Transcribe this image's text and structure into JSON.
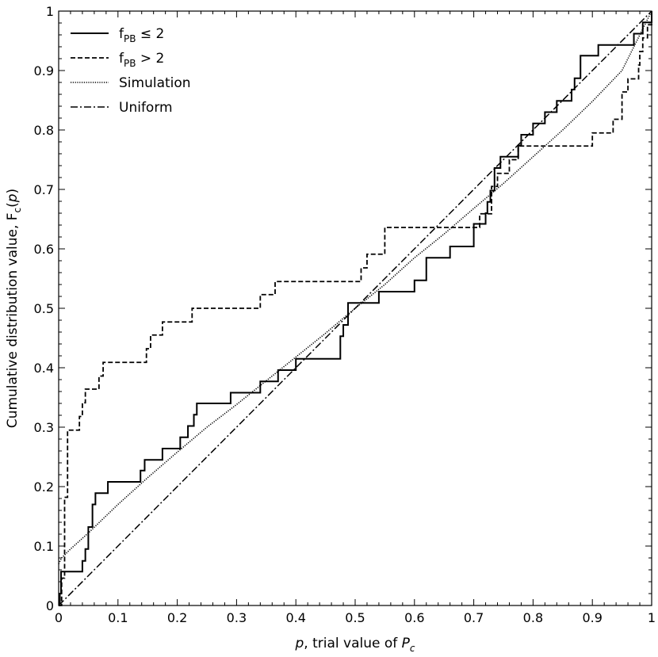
{
  "chart_data": {
    "type": "line",
    "title": "",
    "xlabel": {
      "italic_pre": "p",
      "text": ", trial value of ",
      "italic_main": "P",
      "sub": "c"
    },
    "ylabel": {
      "pre": "Cumulative distribution value, F",
      "sub": "c",
      "post": "(",
      "italic": "p",
      "close": ")"
    },
    "xlim": [
      0,
      1
    ],
    "ylim": [
      0,
      1
    ],
    "x_ticks": [
      "0",
      "0.1",
      "0.2",
      "0.3",
      "0.4",
      "0.5",
      "0.6",
      "0.7",
      "0.8",
      "0.9",
      "1"
    ],
    "y_ticks": [
      "0",
      "0.1",
      "0.2",
      "0.3",
      "0.4",
      "0.5",
      "0.6",
      "0.7",
      "0.8",
      "0.9",
      "1"
    ],
    "legend_position": "top-left",
    "series": [
      {
        "name": {
          "main": "f",
          "sub": "PB",
          "rest": " ≤ 2"
        },
        "style": "solid",
        "step": true,
        "x": [
          0,
          0.002,
          0.004,
          0.04,
          0.045,
          0.05,
          0.057,
          0.062,
          0.083,
          0.138,
          0.145,
          0.175,
          0.205,
          0.218,
          0.228,
          0.233,
          0.29,
          0.34,
          0.37,
          0.4,
          0.475,
          0.48,
          0.488,
          0.54,
          0.6,
          0.62,
          0.66,
          0.7,
          0.7,
          0.72,
          0.723,
          0.728,
          0.735,
          0.745,
          0.775,
          0.78,
          0.8,
          0.82,
          0.84,
          0.85,
          0.865,
          0.87,
          0.88,
          0.91,
          0.94,
          0.97,
          0.985,
          1
        ],
        "y": [
          0,
          0.02,
          0.057,
          0.075,
          0.095,
          0.132,
          0.17,
          0.189,
          0.208,
          0.227,
          0.245,
          0.264,
          0.283,
          0.302,
          0.321,
          0.34,
          0.358,
          0.377,
          0.396,
          0.415,
          0.453,
          0.472,
          0.509,
          0.528,
          0.547,
          0.585,
          0.604,
          0.623,
          0.642,
          0.66,
          0.679,
          0.698,
          0.736,
          0.755,
          0.774,
          0.792,
          0.811,
          0.83,
          0.849,
          0.849,
          0.868,
          0.887,
          0.925,
          0.943,
          0.943,
          0.962,
          0.981,
          1.0
        ]
      },
      {
        "name": {
          "main": "f",
          "sub": "PB",
          "rest": " > 2"
        },
        "style": "dashed",
        "step": true,
        "x": [
          0,
          0.005,
          0.01,
          0.015,
          0.035,
          0.04,
          0.045,
          0.068,
          0.075,
          0.08,
          0.14,
          0.148,
          0.155,
          0.175,
          0.2,
          0.225,
          0.34,
          0.345,
          0.365,
          0.51,
          0.52,
          0.55,
          0.62,
          0.64,
          0.71,
          0.73,
          0.74,
          0.76,
          0.775,
          0.9,
          0.935,
          0.95,
          0.96,
          0.978,
          0.98,
          0.985,
          0.993,
          1.0
        ],
        "y": [
          0,
          0.046,
          0.182,
          0.295,
          0.318,
          0.341,
          0.364,
          0.386,
          0.409,
          0.409,
          0.409,
          0.432,
          0.455,
          0.477,
          0.477,
          0.5,
          0.523,
          0.523,
          0.545,
          0.568,
          0.591,
          0.636,
          0.636,
          0.636,
          0.659,
          0.705,
          0.727,
          0.75,
          0.773,
          0.795,
          0.818,
          0.864,
          0.886,
          0.909,
          0.932,
          0.955,
          0.977,
          1.0
        ]
      },
      {
        "name": {
          "main": "Simulation"
        },
        "style": "dotted",
        "step": false,
        "x": [
          0,
          0.005,
          0.02,
          0.05,
          0.1,
          0.15,
          0.2,
          0.25,
          0.3,
          0.35,
          0.4,
          0.45,
          0.5,
          0.55,
          0.6,
          0.65,
          0.7,
          0.75,
          0.8,
          0.85,
          0.9,
          0.95,
          1.0
        ],
        "y": [
          0.07,
          0.08,
          0.095,
          0.122,
          0.17,
          0.215,
          0.258,
          0.3,
          0.338,
          0.378,
          0.418,
          0.458,
          0.5,
          0.54,
          0.585,
          0.625,
          0.668,
          0.71,
          0.755,
          0.8,
          0.848,
          0.9,
          1.0
        ]
      },
      {
        "name": {
          "main": "Uniform"
        },
        "style": "dashdot",
        "step": false,
        "x": [
          0,
          1
        ],
        "y": [
          0,
          1
        ]
      }
    ]
  }
}
